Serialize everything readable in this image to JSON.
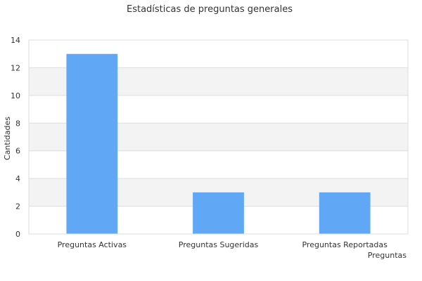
{
  "chart_data": {
    "type": "bar",
    "title": "Estadísticas de preguntas generales",
    "xlabel": "Preguntas",
    "ylabel": "Cantidades",
    "categories": [
      "Preguntas Activas",
      "Preguntas Sugeridas",
      "Preguntas Reportadas"
    ],
    "values": [
      13,
      3,
      3
    ],
    "ylim": [
      0,
      14
    ],
    "yticks": [
      0,
      2,
      4,
      6,
      8,
      10,
      12,
      14
    ],
    "grid": true,
    "legend": "none",
    "bar_color": "#60a8f6",
    "band_color": "#f3f3f3",
    "grid_color": "#dddddd"
  }
}
